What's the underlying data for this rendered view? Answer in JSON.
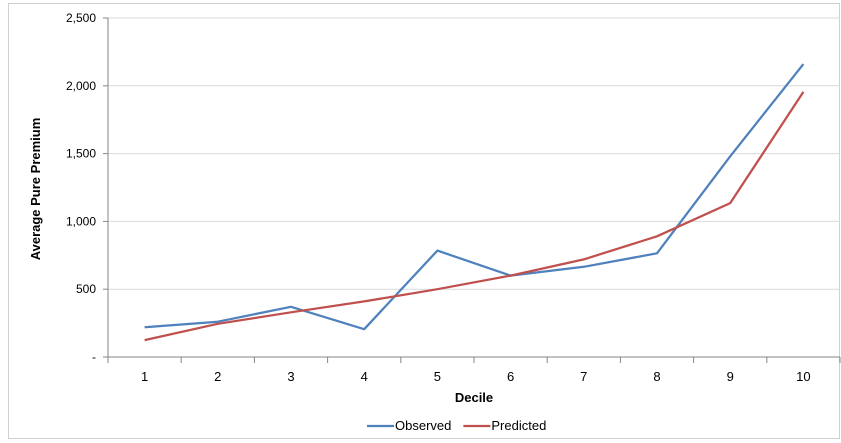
{
  "chart_data": {
    "type": "line",
    "title": "",
    "xlabel": "Decile",
    "ylabel": "Average Pure Premium",
    "categories": [
      "1",
      "2",
      "3",
      "4",
      "5",
      "6",
      "7",
      "8",
      "9",
      "10"
    ],
    "ylim": [
      0,
      2500
    ],
    "yticks": [
      0,
      500,
      1000,
      1500,
      2000,
      2500
    ],
    "ytick_labels": [
      "-",
      "500",
      "1,000",
      "1,500",
      "2,000",
      "2,500"
    ],
    "grid": "horizontal",
    "legend_position": "bottom",
    "series": [
      {
        "name": "Observed",
        "color": "#4f81bd",
        "values": [
          220,
          260,
          370,
          205,
          785,
          600,
          665,
          765,
          1480,
          2160
        ]
      },
      {
        "name": "Predicted",
        "color": "#c0504d",
        "values": [
          125,
          245,
          330,
          410,
          500,
          600,
          720,
          890,
          1135,
          1955
        ]
      }
    ]
  }
}
